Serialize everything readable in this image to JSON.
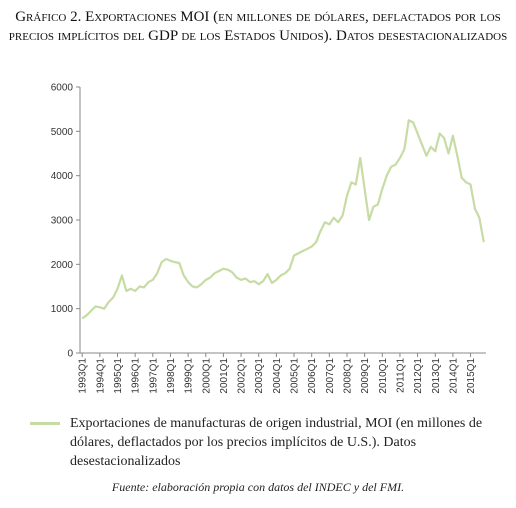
{
  "chart_data": {
    "type": "line",
    "title": "Gráfico 2. Exportaciones MOI (en millones de dólares, deflactados por los precios implícitos del GDP de los Estados Unidos). Datos desestacionalizados",
    "source": "Fuente: elaboración propia con datos del INDEC y del FMI.",
    "categories": [
      "1993Q1",
      null,
      null,
      null,
      "1994Q1",
      null,
      null,
      null,
      "1995Q1",
      null,
      null,
      null,
      "1996Q1",
      null,
      null,
      null,
      "1997Q1",
      null,
      null,
      null,
      "1998Q1",
      null,
      null,
      null,
      "1999Q1",
      null,
      null,
      null,
      "2000Q1",
      null,
      null,
      null,
      "2001Q1",
      null,
      null,
      null,
      "2002Q1",
      null,
      null,
      null,
      "2003Q1",
      null,
      null,
      null,
      "2004Q1",
      null,
      null,
      null,
      "2005Q1",
      null,
      null,
      null,
      "2006Q1",
      null,
      null,
      null,
      "2007Q1",
      null,
      null,
      null,
      "2008Q1",
      null,
      null,
      null,
      "2009Q1",
      null,
      null,
      null,
      "2010Q1",
      null,
      null,
      null,
      "2011Q1",
      null,
      null,
      null,
      "2012Q1",
      null,
      null,
      null,
      "2013Q1",
      null,
      null,
      null,
      "2014Q1",
      null,
      null,
      null,
      "2015Q1",
      null,
      null,
      null
    ],
    "series": [
      {
        "name": "Exportaciones de manufacturas de origen industrial, MOI (en millones de dólares, deflactados por los precios implícitos de U.S.). Datos desestacionalizados",
        "color": "#c6dca4",
        "values": [
          780,
          850,
          950,
          1050,
          1030,
          1000,
          1150,
          1250,
          1450,
          1750,
          1400,
          1450,
          1400,
          1500,
          1480,
          1600,
          1650,
          1800,
          2050,
          2120,
          2080,
          2050,
          2030,
          1750,
          1600,
          1500,
          1480,
          1550,
          1650,
          1700,
          1800,
          1850,
          1900,
          1880,
          1820,
          1700,
          1650,
          1680,
          1600,
          1620,
          1550,
          1620,
          1780,
          1580,
          1650,
          1750,
          1800,
          1900,
          2200,
          2250,
          2300,
          2350,
          2400,
          2500,
          2750,
          2950,
          2900,
          3050,
          2950,
          3100,
          3550,
          3850,
          3800,
          4400,
          3700,
          3000,
          3300,
          3350,
          3700,
          4000,
          4200,
          4250,
          4400,
          4600,
          5250,
          5200,
          4950,
          4700,
          4450,
          4650,
          4550,
          4950,
          4850,
          4500,
          4900,
          4450,
          3950,
          3850,
          3800,
          3250,
          3050,
          2500
        ]
      }
    ],
    "ylim": [
      0,
      6000
    ],
    "yticks": [
      0,
      1000,
      2000,
      3000,
      4000,
      5000,
      6000
    ],
    "grid": false
  }
}
